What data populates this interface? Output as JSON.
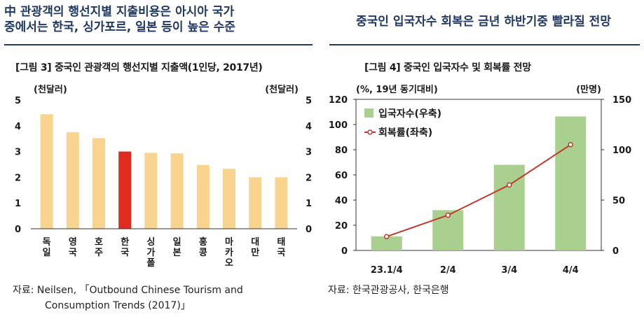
{
  "headlines": {
    "left_line1": "中 관광객의 행선지별 지출비용은 아시아 국가",
    "left_line2": "중에서는 한국, 싱가포르, 일본 등이 높은 수준",
    "right": "중국인 입국자수 회복은 금년 하반기중 빨라질 전망"
  },
  "sources": {
    "left_line1": "자료: Neilsen, 「Outbound Chinese Tourism and",
    "left_line2": "Consumption Trends (2017)」",
    "right": "자료: 한국관광공사, 한국은행"
  },
  "chart_data": [
    {
      "type": "bar",
      "title": "[그림 3] 중국인 관광객의 행선지별 지출액(1인당, 2017년)",
      "left_unit": "(천달러)",
      "right_unit": "(천달러)",
      "ylim": [
        0,
        5
      ],
      "yticks": [
        "0",
        "1",
        "2",
        "3",
        "4",
        "5"
      ],
      "categories": [
        "독일",
        "영국",
        "호주",
        "한국",
        "싱가폴",
        "일본",
        "홍콩",
        "마카오",
        "대만",
        "태국"
      ],
      "values": [
        4.45,
        3.75,
        3.52,
        3.0,
        2.95,
        2.93,
        2.48,
        2.33,
        2.0,
        2.0
      ],
      "highlight_index": 3,
      "colors": {
        "bar": "#F8D48E",
        "highlight": "#E02B20"
      }
    },
    {
      "type": "bar+line",
      "title": "[그림 4] 중국인 입국자수 및 회복률 전망",
      "left_unit": "(%, 19년 동기대비)",
      "right_unit": "(만명)",
      "categories": [
        "23.1/4",
        "2/4",
        "3/4",
        "4/4"
      ],
      "ylim_left": [
        0,
        120
      ],
      "ylim_right": [
        0,
        150
      ],
      "yticks_left": [
        "0",
        "20",
        "40",
        "60",
        "80",
        "100",
        "120"
      ],
      "yticks_right": [
        "0",
        "50",
        "100",
        "150"
      ],
      "series": [
        {
          "name": "입국자수(우축)",
          "type": "bar",
          "axis": "right",
          "values": [
            14,
            40,
            85,
            133
          ],
          "color": "#A9D08E"
        },
        {
          "name": "회복률(좌축)",
          "type": "line",
          "axis": "left",
          "values": [
            11,
            28,
            52,
            84
          ],
          "color": "#C0392B"
        }
      ]
    }
  ]
}
